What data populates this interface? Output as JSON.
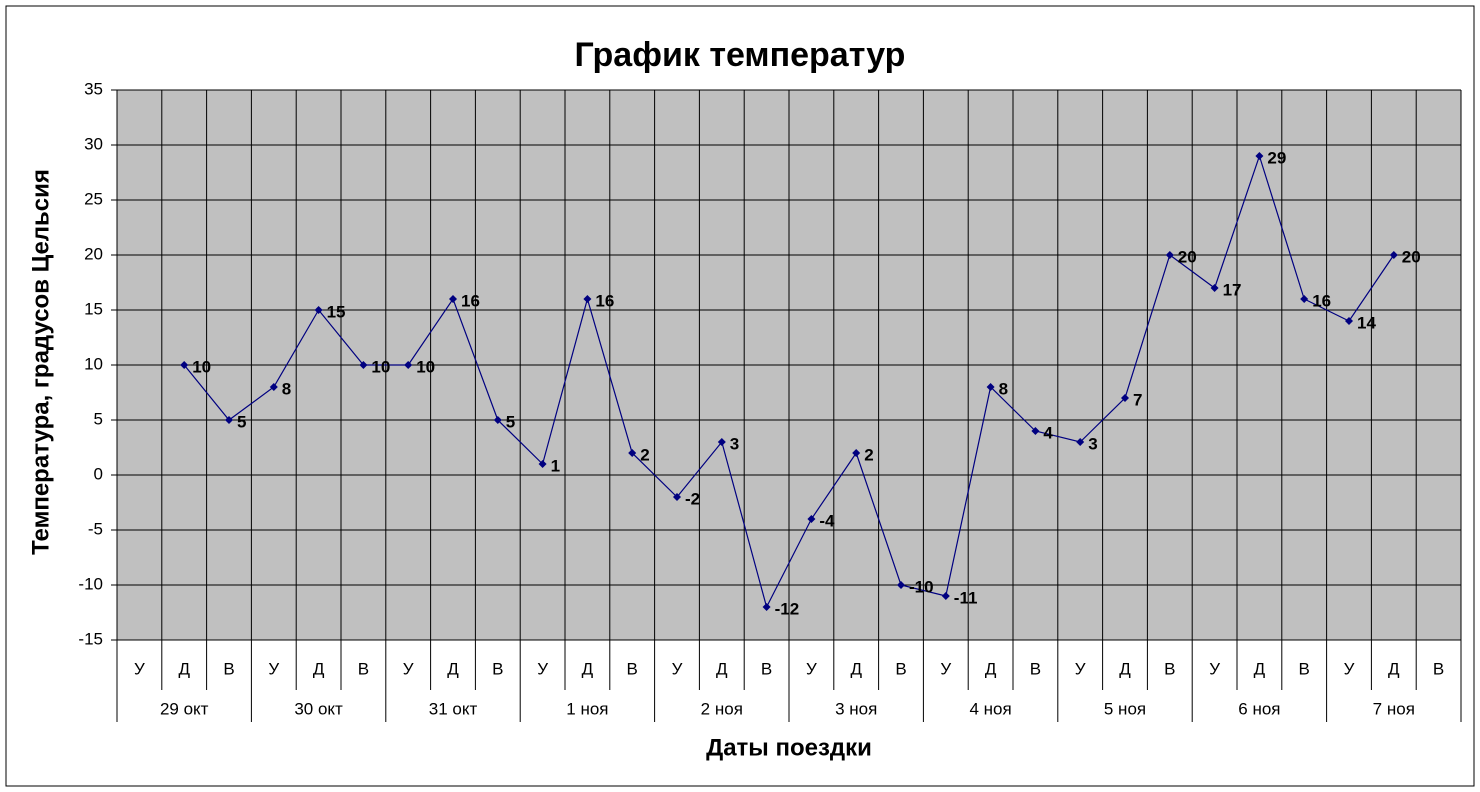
{
  "chart_data": {
    "type": "line",
    "title": "График температур",
    "y_label": "Температура, градусов Цельсия",
    "x_label": "Даты поездки",
    "categories": [
      "У",
      "Д",
      "В",
      "У",
      "Д",
      "В",
      "У",
      "Д",
      "В",
      "У",
      "Д",
      "В",
      "У",
      "Д",
      "В",
      "У",
      "Д",
      "В",
      "У",
      "Д",
      "В",
      "У",
      "Д",
      "В",
      "У",
      "Д",
      "В",
      "У",
      "Д",
      "В"
    ],
    "category_groups": [
      "29 окт",
      "30 окт",
      "31 окт",
      "1 ноя",
      "2 ноя",
      "3 ноя",
      "4 ноя",
      "5 ноя",
      "6 ноя",
      "7 ноя"
    ],
    "series": [
      {
        "name": "Температура",
        "color": "#000080",
        "values": [
          null,
          10,
          5,
          8,
          15,
          10,
          10,
          16,
          5,
          1,
          16,
          2,
          -2,
          3,
          -12,
          -4,
          2,
          -10,
          -11,
          8,
          4,
          3,
          7,
          20,
          17,
          29,
          16,
          14,
          20,
          null
        ]
      }
    ],
    "ylim": [
      -15,
      35
    ],
    "yticks": [
      -15,
      -10,
      -5,
      0,
      5,
      10,
      15,
      20,
      25,
      30,
      35
    ],
    "grid": true
  }
}
